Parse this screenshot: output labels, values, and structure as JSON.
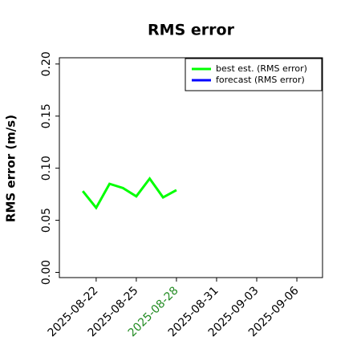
{
  "chart_data": {
    "type": "line",
    "title": "RMS error",
    "y_label": "RMS error (m/s)",
    "x": [
      "2025-08-21",
      "2025-08-22",
      "2025-08-23",
      "2025-08-24",
      "2025-08-25",
      "2025-08-26",
      "2025-08-27",
      "2025-08-28"
    ],
    "series": [
      {
        "name": "best est. (RMS error)",
        "color": "#00ff00",
        "values": [
          0.078,
          0.062,
          0.085,
          0.081,
          0.073,
          0.09,
          0.072,
          0.079
        ]
      },
      {
        "name": "forecast (RMS error)",
        "color": "#0000ff",
        "values": [
          null,
          null,
          null,
          null,
          null,
          null,
          null,
          null
        ]
      }
    ],
    "xlim": [
      "2025-08-19T06:00",
      "2025-09-07T22:00"
    ],
    "xticks": [
      "2025-08-22",
      "2025-08-25",
      "2025-08-28",
      "2025-08-31",
      "2025-09-03",
      "2025-09-06"
    ],
    "xtick_colors": [
      "#000000",
      "#000000",
      "#228b22",
      "#000000",
      "#000000",
      "#000000"
    ],
    "ylim": [
      -0.005,
      0.206
    ],
    "yticks": [
      {
        "value": 0,
        "label": "0.00"
      },
      0.05,
      {
        "value": 0.1,
        "label": "0.10"
      },
      0.15,
      {
        "value": 0.2,
        "label": "0.20"
      }
    ],
    "legend": "upper right"
  }
}
